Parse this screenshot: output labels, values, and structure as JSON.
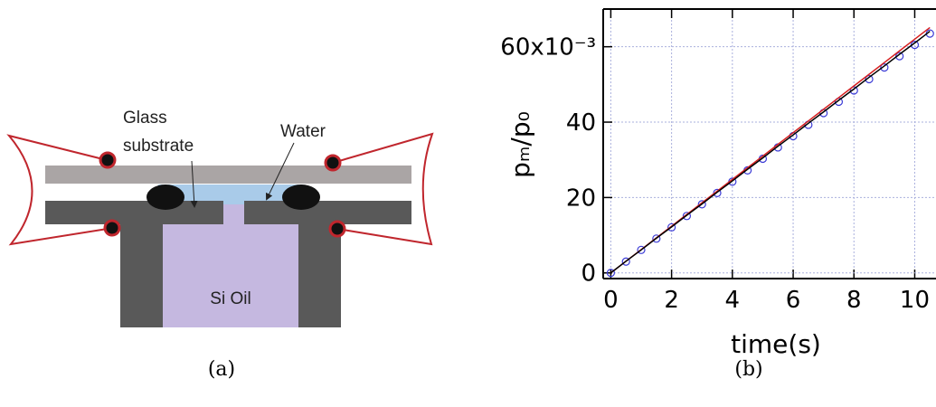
{
  "diagram": {
    "labels": {
      "glass": "Glass",
      "substrate": "substrate",
      "water": "Water",
      "oil": "Si Oil"
    },
    "caption": "(a)"
  },
  "caption": "(b)",
  "chart_data": {
    "type": "line",
    "x_label": "time(s)",
    "y_label": "pₘ/p₀",
    "x": [
      0,
      0.5,
      1,
      1.5,
      2,
      2.5,
      3,
      3.5,
      4,
      4.5,
      5,
      5.5,
      6,
      6.5,
      7,
      7.5,
      8,
      8.5,
      9,
      9.5,
      10,
      10.5
    ],
    "series": [
      {
        "color": "#3b3bd6",
        "marker": "circle",
        "values": [
          0,
          3.0,
          6.1,
          9.1,
          12.1,
          15.1,
          18.2,
          21.2,
          24.2,
          27.2,
          30.3,
          33.3,
          36.3,
          39.3,
          42.4,
          45.4,
          48.4,
          51.4,
          54.5,
          57.5,
          60.5,
          63.5
        ]
      },
      {
        "color": "#d62020",
        "marker": "none",
        "values": [
          0,
          3.1,
          6.2,
          9.3,
          12.4,
          15.5,
          18.6,
          21.7,
          24.8,
          27.9,
          31.0,
          34.1,
          37.2,
          40.3,
          43.4,
          46.5,
          49.6,
          52.7,
          55.8,
          58.9,
          62.0,
          65.1
        ]
      },
      {
        "color": "#000000",
        "marker": "none",
        "values": [
          0,
          3.1,
          6.1,
          9.2,
          12.2,
          15.3,
          18.3,
          21.4,
          24.4,
          27.5,
          30.5,
          33.6,
          36.6,
          39.7,
          42.7,
          45.8,
          48.8,
          51.9,
          54.9,
          58.0,
          61.0,
          64.1
        ]
      }
    ],
    "xlim": [
      -0.25,
      10.7
    ],
    "ylim": [
      -1.5,
      70
    ],
    "xticks": [
      0,
      2,
      4,
      6,
      8,
      10
    ],
    "yticks": [
      0,
      20,
      40,
      {
        "value": 60,
        "label": "60x10⁻³"
      }
    ],
    "grid": true
  }
}
